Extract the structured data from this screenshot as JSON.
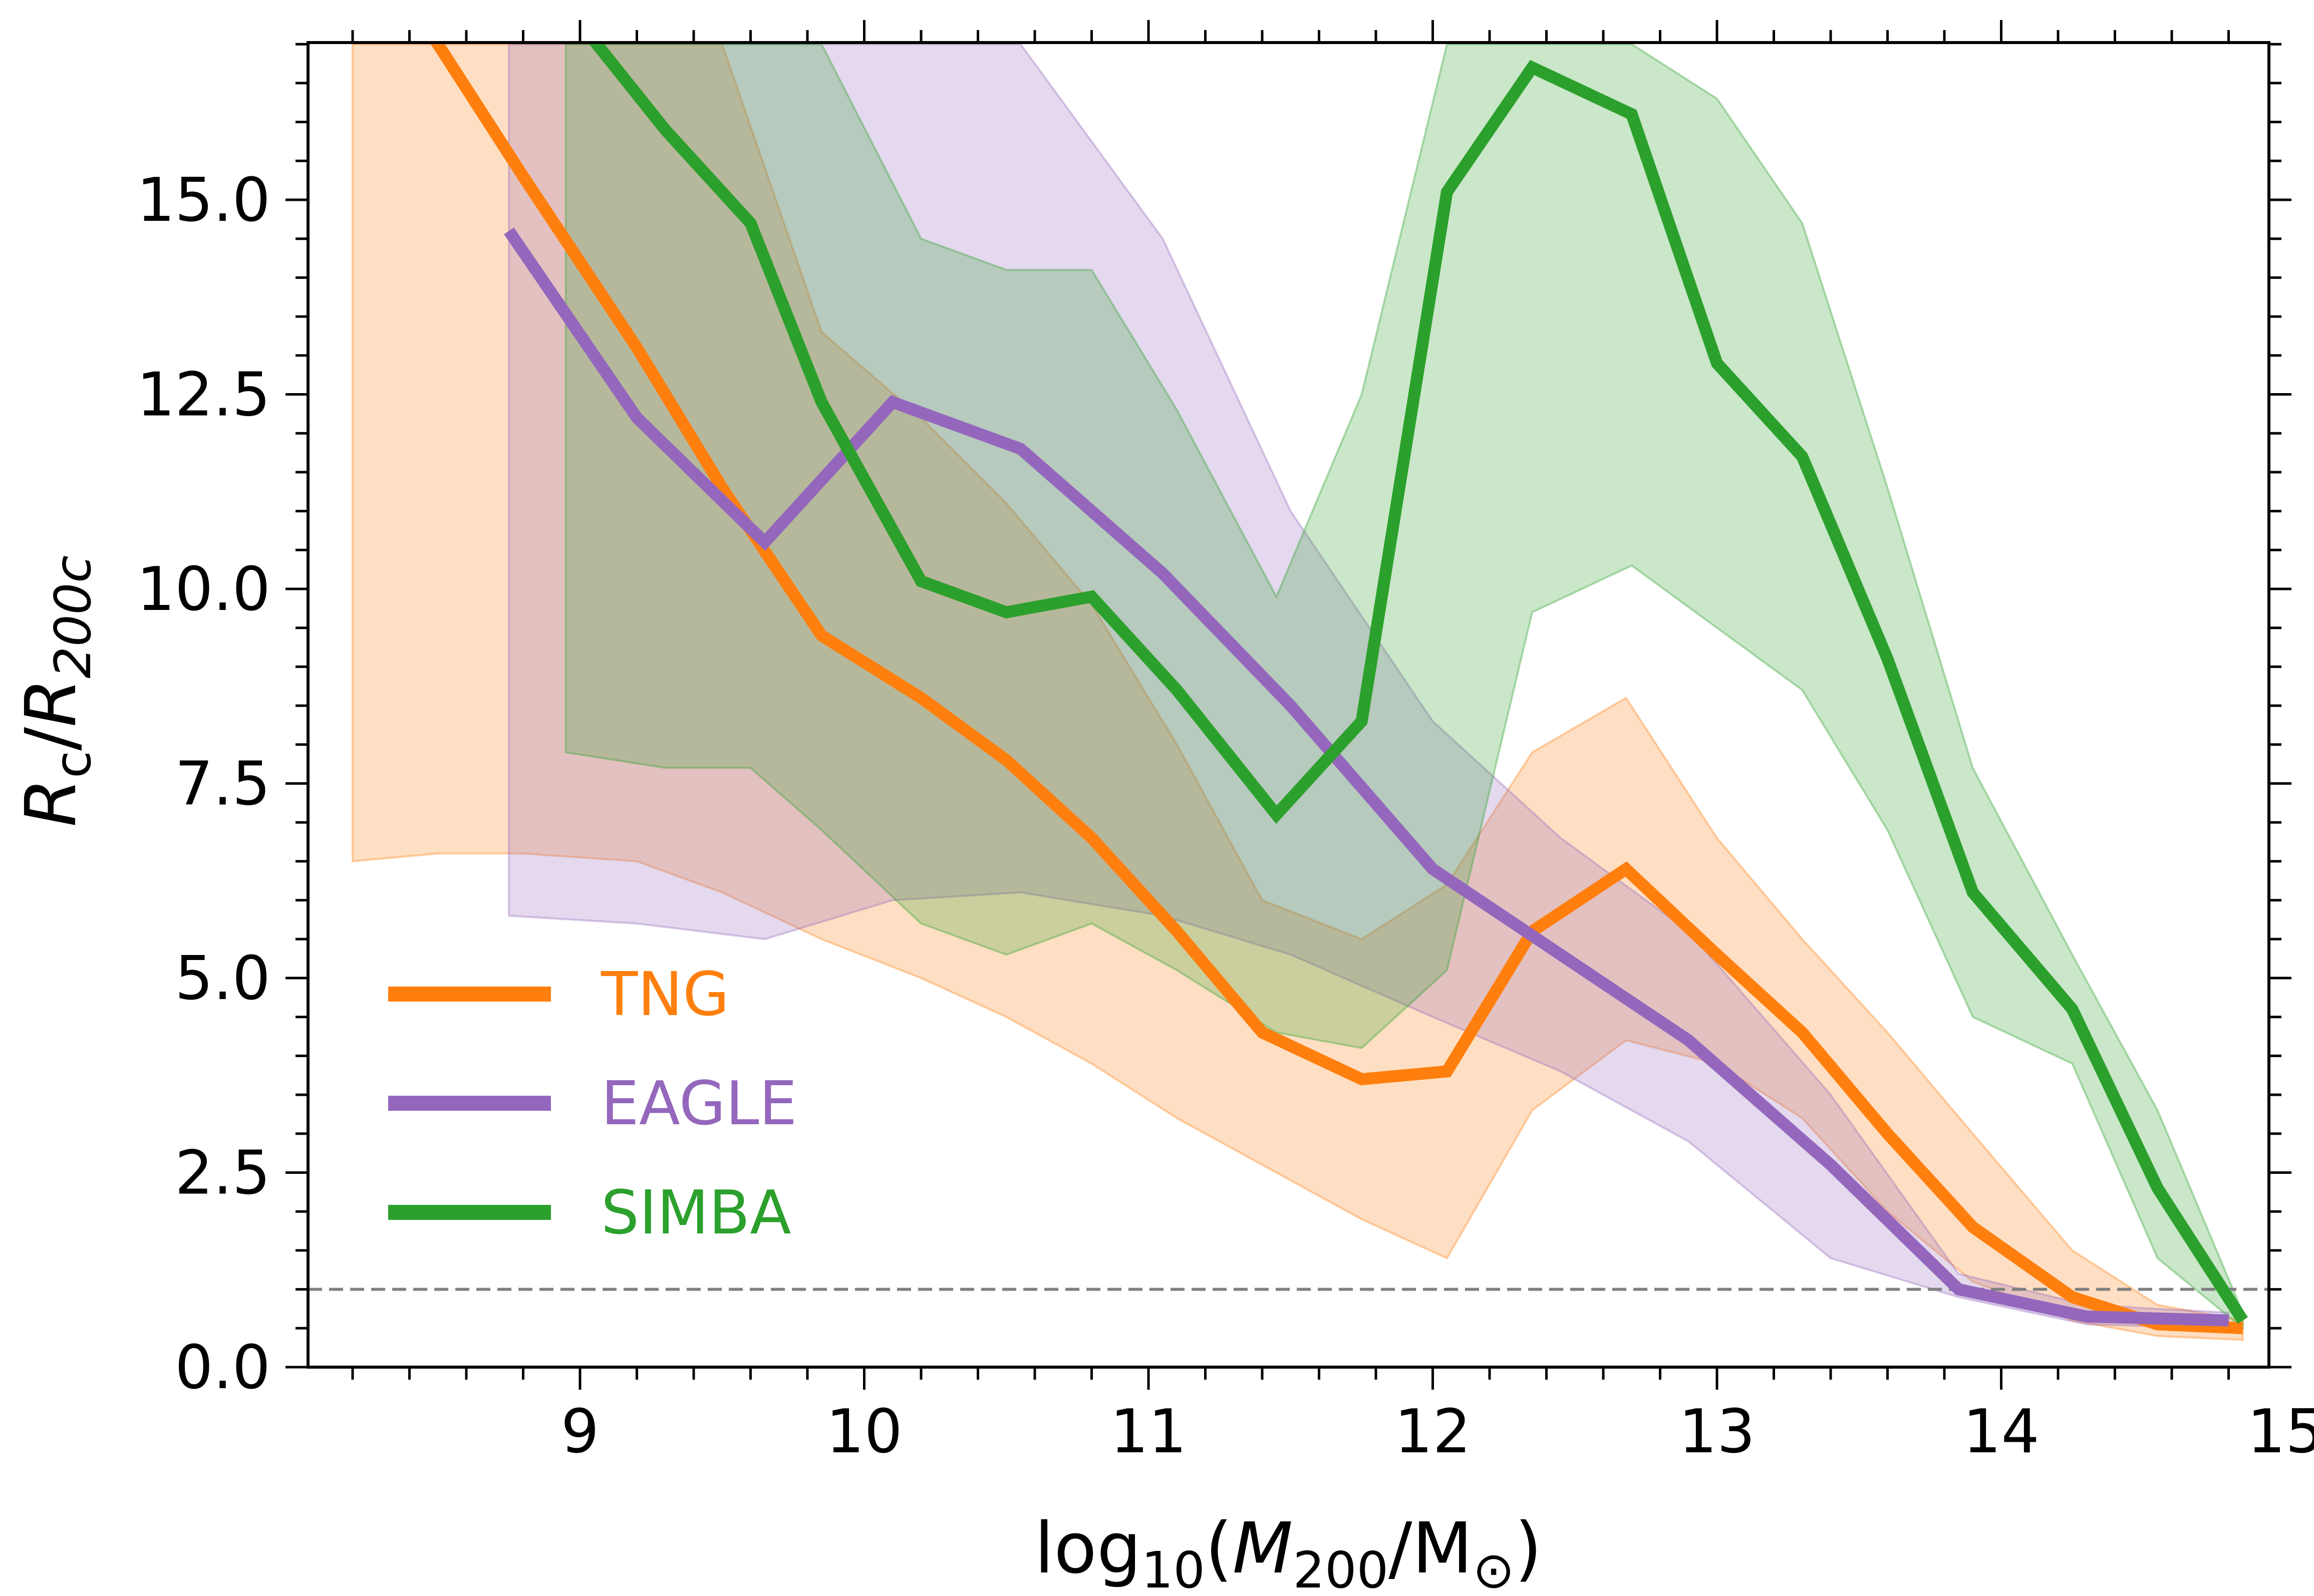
{
  "chart_data": {
    "type": "line",
    "xlabel": {
      "pre": "log",
      "sub1": "10",
      "mid": "(",
      "italic": "M",
      "sub2": "200",
      "post": "/M",
      "sub3": "⊙",
      "end": ")"
    },
    "ylabel": {
      "r1": "R",
      "sub1": "c",
      "slash": "/",
      "r2": "R",
      "sub2": "200c"
    },
    "xlim": [
      8.0,
      15.0
    ],
    "ylim": [
      0.0,
      17.0
    ],
    "xticks": [
      "9",
      "10",
      "11",
      "12",
      "13",
      "14",
      "15"
    ],
    "yticks": [
      "0.0",
      "2.5",
      "5.0",
      "7.5",
      "10.0",
      "12.5",
      "15.0"
    ],
    "x_minor_step": 0.2,
    "y_minor_step": 0.5,
    "reference_line": {
      "y": 1.0,
      "style": "dashed",
      "color": "#808080"
    },
    "legend_placement": "lower-left",
    "series": [
      {
        "name": "TNG",
        "color": "#ff7f0e",
        "x": [
          8.2,
          8.5,
          8.8,
          9.2,
          9.5,
          9.85,
          10.2,
          10.5,
          10.8,
          11.1,
          11.4,
          11.75,
          12.05,
          12.35,
          12.68,
          13.0,
          13.3,
          13.6,
          13.9,
          14.25,
          14.55,
          14.85
        ],
        "y": [
          18.5,
          17.0,
          15.3,
          13.1,
          11.3,
          9.4,
          8.6,
          7.8,
          6.8,
          5.6,
          4.3,
          3.7,
          3.8,
          5.6,
          6.4,
          5.3,
          4.3,
          3.0,
          1.8,
          0.9,
          0.55,
          0.5
        ],
        "lower": [
          6.5,
          6.6,
          6.6,
          6.5,
          6.1,
          5.5,
          5.0,
          4.5,
          3.9,
          3.2,
          2.6,
          1.9,
          1.4,
          3.3,
          4.2,
          3.9,
          3.2,
          2.0,
          1.1,
          0.6,
          0.4,
          0.35
        ],
        "upper": [
          17.0,
          17.0,
          17.0,
          17.0,
          17.0,
          13.3,
          12.2,
          11.1,
          9.8,
          8.0,
          6.0,
          5.5,
          6.2,
          7.9,
          8.6,
          6.8,
          5.5,
          4.3,
          3.0,
          1.5,
          0.8,
          0.6
        ]
      },
      {
        "name": "EAGLE",
        "color": "#9467bd",
        "x": [
          8.75,
          9.2,
          9.65,
          10.1,
          10.55,
          11.05,
          11.5,
          12.0,
          12.45,
          12.9,
          13.4,
          13.85,
          14.3,
          14.8
        ],
        "y": [
          14.6,
          12.2,
          10.6,
          12.4,
          11.8,
          10.2,
          8.5,
          6.4,
          5.3,
          4.2,
          2.6,
          1.0,
          0.65,
          0.6
        ],
        "lower": [
          5.8,
          5.7,
          5.5,
          6.0,
          6.1,
          5.8,
          5.3,
          4.5,
          3.8,
          2.9,
          1.4,
          0.9,
          0.55,
          0.5
        ],
        "upper": [
          17.0,
          17.0,
          17.0,
          17.0,
          17.0,
          14.5,
          11.0,
          8.3,
          6.8,
          5.6,
          3.5,
          1.2,
          0.8,
          0.7
        ]
      },
      {
        "name": "SIMBA",
        "color": "#2ca02c",
        "x": [
          8.95,
          9.3,
          9.6,
          9.85,
          10.2,
          10.5,
          10.8,
          11.1,
          11.45,
          11.75,
          12.05,
          12.35,
          12.7,
          13.0,
          13.3,
          13.6,
          13.9,
          14.25,
          14.55,
          14.85
        ],
        "y": [
          17.5,
          15.9,
          14.7,
          12.4,
          10.1,
          9.7,
          9.9,
          8.7,
          7.1,
          8.3,
          15.1,
          16.7,
          16.1,
          12.9,
          11.7,
          9.1,
          6.1,
          4.6,
          2.3,
          0.6
        ],
        "lower": [
          7.9,
          7.7,
          7.7,
          6.9,
          5.7,
          5.3,
          5.7,
          5.1,
          4.3,
          4.1,
          5.1,
          9.7,
          10.3,
          9.5,
          8.7,
          6.9,
          4.5,
          3.9,
          1.4,
          0.5
        ],
        "upper": [
          17.0,
          17.0,
          17.0,
          17.0,
          14.5,
          14.1,
          14.1,
          12.3,
          9.9,
          12.5,
          17.0,
          17.0,
          17.0,
          16.3,
          14.7,
          11.3,
          7.7,
          5.3,
          3.3,
          0.7
        ],
        "upper_extra": {
          "x": [
            9.6,
            9.85
          ],
          "y": [
            15.7,
            17.0
          ]
        }
      }
    ]
  }
}
